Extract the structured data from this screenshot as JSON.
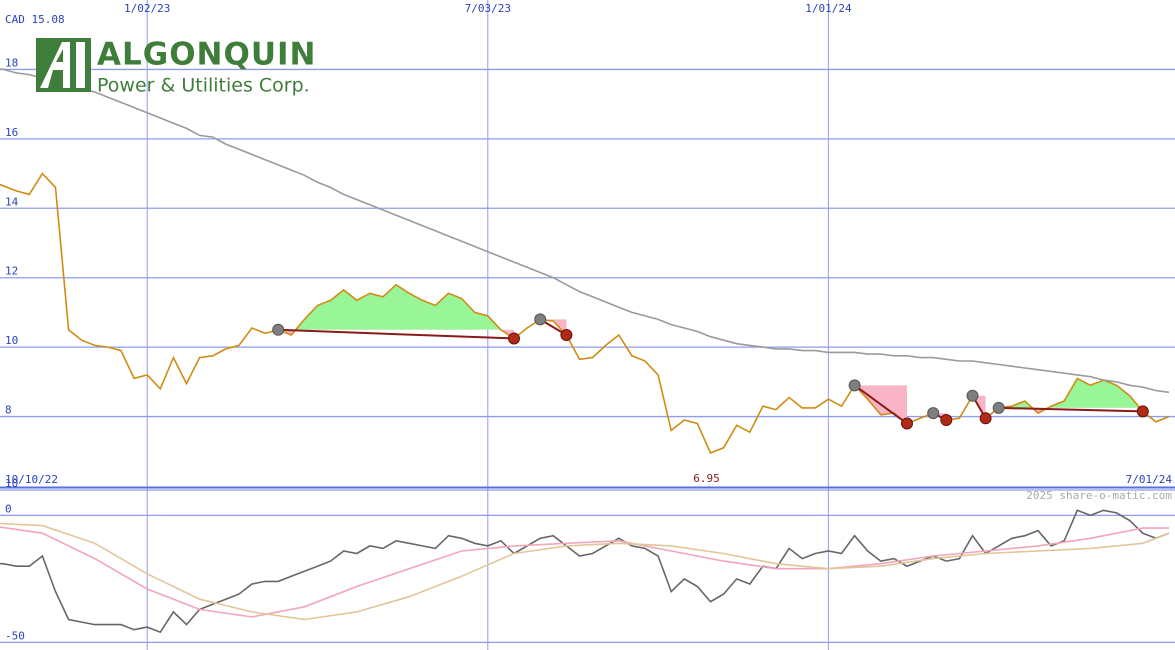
{
  "chart_data": [
    {
      "type": "line",
      "header": "CAD 15.08",
      "low": 6.95,
      "x_range_labels": [
        "10/10/22",
        "7/01/24"
      ],
      "categories": [
        null,
        null,
        null,
        null,
        null,
        null,
        null,
        null,
        null,
        null,
        null,
        null,
        "1/02/23",
        null,
        null,
        null,
        null,
        null,
        null,
        null,
        null,
        null,
        null,
        null,
        null,
        null,
        null,
        null,
        null,
        null,
        null,
        null,
        null,
        null,
        null,
        null,
        null,
        null,
        "7/03/23",
        null,
        null,
        null,
        null,
        null,
        null,
        null,
        null,
        null,
        null,
        null,
        null,
        null,
        null,
        null,
        null,
        null,
        null,
        null,
        null,
        null,
        null,
        null,
        null,
        null,
        "1/01/24",
        null,
        null,
        null,
        null,
        null,
        null,
        null,
        null,
        null,
        null,
        null,
        null,
        null,
        null,
        null,
        null,
        null,
        null,
        null,
        null,
        null,
        null,
        null,
        null,
        null,
        null
      ],
      "ylim": [
        6,
        20
      ],
      "yticks": [
        8,
        10,
        12,
        14,
        16,
        18
      ],
      "grid": true,
      "series": [
        {
          "color": "#d08c12",
          "values": [
            14.8,
            14.65,
            14.5,
            14.4,
            15.0,
            14.6,
            10.5,
            10.2,
            10.05,
            10.0,
            9.9,
            9.1,
            9.2,
            8.8,
            9.7,
            8.95,
            9.7,
            9.75,
            9.95,
            10.05,
            10.55,
            10.4,
            10.5,
            10.35,
            10.8,
            11.2,
            11.35,
            11.65,
            11.35,
            11.55,
            11.45,
            11.8,
            11.55,
            11.35,
            11.2,
            11.55,
            11.4,
            11.0,
            10.9,
            10.5,
            10.25,
            10.55,
            10.8,
            10.75,
            10.35,
            9.65,
            9.7,
            10.05,
            10.35,
            9.75,
            9.6,
            9.2,
            7.6,
            7.9,
            7.8,
            6.95,
            7.1,
            7.75,
            7.55,
            8.3,
            8.2,
            8.55,
            8.25,
            8.25,
            8.5,
            8.3,
            8.9,
            8.5,
            8.05,
            8.1,
            7.8,
            7.95,
            8.1,
            7.9,
            7.95,
            8.6,
            7.95,
            8.25,
            8.3,
            8.45,
            8.1,
            8.3,
            8.45,
            9.1,
            8.9,
            9.05,
            8.9,
            8.6,
            8.15,
            7.85,
            8.0
          ]
        },
        {
          "color": "#9a9a9a",
          "values": [
            18.05,
            18.0,
            17.9,
            17.85,
            17.75,
            17.65,
            17.55,
            17.45,
            17.35,
            17.2,
            17.05,
            16.9,
            16.75,
            16.6,
            16.45,
            16.3,
            16.1,
            16.05,
            15.85,
            15.7,
            15.55,
            15.4,
            15.25,
            15.1,
            14.95,
            14.75,
            14.6,
            14.4,
            14.25,
            14.1,
            13.95,
            13.8,
            13.65,
            13.5,
            13.35,
            13.2,
            13.05,
            12.9,
            12.75,
            12.6,
            12.45,
            12.3,
            12.15,
            12.0,
            11.8,
            11.6,
            11.45,
            11.3,
            11.15,
            11.0,
            10.9,
            10.8,
            10.65,
            10.55,
            10.45,
            10.3,
            10.2,
            10.1,
            10.05,
            10.0,
            9.95,
            9.95,
            9.9,
            9.9,
            9.85,
            9.85,
            9.85,
            9.8,
            9.8,
            9.75,
            9.75,
            9.7,
            9.7,
            9.65,
            9.6,
            9.6,
            9.55,
            9.5,
            9.45,
            9.4,
            9.35,
            9.3,
            9.25,
            9.2,
            9.15,
            9.05,
            9.0,
            8.9,
            8.85,
            8.75,
            8.7
          ]
        }
      ],
      "trades": [
        [
          22,
          40
        ],
        [
          42,
          44
        ],
        [
          66,
          70
        ],
        [
          72,
          73
        ],
        [
          75,
          76
        ],
        [
          77,
          88
        ]
      ],
      "gain_color": "#98f598",
      "loss_color": "#f9b4c8",
      "entry_color": "#7f7f7f",
      "exit_color": "#b02a16",
      "trade_line_color": "#8b1a1a"
    },
    {
      "type": "line",
      "ylim": [
        -53,
        10
      ],
      "yticks": [
        10,
        0,
        -50
      ],
      "grid": true,
      "series": [
        {
          "color": "#666666",
          "values": [
            -19,
            -19,
            -20,
            -20,
            -16,
            -30,
            -41,
            -42,
            -43,
            -43,
            -43,
            -45,
            -44,
            -46,
            -38,
            -43,
            -37,
            -35,
            -33,
            -31,
            -27,
            -26,
            -26,
            -24,
            -22,
            -20,
            -18,
            -14,
            -15,
            -12,
            -13,
            -10,
            -11,
            -12,
            -13,
            -8,
            -9,
            -11,
            -12,
            -10,
            -15,
            -12,
            -9,
            -8,
            -12,
            -16,
            -15,
            -12,
            -9,
            -12,
            -13,
            -16,
            -30,
            -25,
            -28,
            -34,
            -31,
            -25,
            -27,
            -20,
            -21,
            -13,
            -17,
            -15,
            -14,
            -15,
            -8,
            -14,
            -18,
            -17,
            -20,
            -18,
            -16,
            -18,
            -17,
            -8,
            -15,
            -12,
            -9,
            -8,
            -6,
            -12,
            -10,
            2,
            0,
            2,
            1,
            -2,
            -7,
            -9,
            -7
          ]
        },
        {
          "color": "#f2a6b8",
          "x": [
            0,
            4,
            8,
            12,
            16,
            20,
            24,
            28,
            32,
            36,
            40,
            44,
            48,
            52,
            56,
            60,
            64,
            68,
            72,
            76,
            80,
            84,
            88,
            90
          ],
          "values": [
            -4,
            -7,
            -17,
            -29,
            -37,
            -40,
            -36,
            -28,
            -21,
            -14,
            -12,
            -11,
            -10,
            -14,
            -18,
            -21,
            -21,
            -19,
            -16,
            -14,
            -12,
            -9,
            -5,
            -5
          ]
        },
        {
          "color": "#e2c59a",
          "x": [
            0,
            4,
            8,
            12,
            16,
            20,
            24,
            28,
            32,
            36,
            40,
            44,
            48,
            52,
            56,
            60,
            64,
            68,
            72,
            76,
            80,
            84,
            88,
            90
          ],
          "values": [
            -3,
            -4,
            -11,
            -23,
            -33,
            -38,
            -41,
            -38,
            -32,
            -24,
            -15,
            -12,
            -11,
            -12,
            -15,
            -19,
            -21,
            -20,
            -17,
            -15,
            -14,
            -13,
            -11,
            -7
          ]
        }
      ],
      "watermark": "2025 share-o-matic.com"
    }
  ],
  "logo": {
    "name": "ALGONQUIN",
    "tagline": "Power & Utilities Corp."
  }
}
